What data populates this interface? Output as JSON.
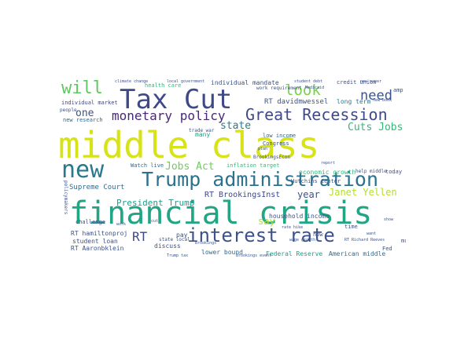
{
  "wordcloud": {
    "palette": {
      "purple": "#440154",
      "indigo": "#3b528b",
      "slate": "#414487",
      "blue": "#31688e",
      "teal": "#21918c",
      "sea": "#1f9e89",
      "green": "#35b779",
      "lime": "#6ece58",
      "yellowgreen": "#b5de2b",
      "yellow": "#fde725",
      "chartreuse": "#c8e020"
    },
    "words": [
      {
        "text": "middle class"
      },
      {
        "text": "financial crisis"
      },
      {
        "text": "Tax Cut"
      },
      {
        "text": "Trump administration"
      },
      {
        "text": "interest rate"
      },
      {
        "text": "Great Recession"
      },
      {
        "text": "new"
      },
      {
        "text": "will"
      },
      {
        "text": "monetary policy"
      },
      {
        "text": "look"
      },
      {
        "text": "need"
      },
      {
        "text": "Cuts Jobs"
      },
      {
        "text": "Jobs Act"
      },
      {
        "text": "state"
      },
      {
        "text": "one"
      },
      {
        "text": "RT BrookingsInst"
      },
      {
        "text": "President Trump"
      },
      {
        "text": "Janet Yellen"
      },
      {
        "text": "year"
      },
      {
        "text": "RT"
      },
      {
        "text": "Supreme Court"
      },
      {
        "text": "RT davidmwessel"
      },
      {
        "text": "long term"
      },
      {
        "text": "individual mandate"
      },
      {
        "text": "health care"
      },
      {
        "text": "new research"
      },
      {
        "text": "individual market"
      },
      {
        "text": "RT hamiltonproj"
      },
      {
        "text": "student loan"
      },
      {
        "text": "RT Aaronbklein"
      },
      {
        "text": "lower bound"
      },
      {
        "text": "household income"
      },
      {
        "text": "economic growth"
      },
      {
        "text": "American middle"
      },
      {
        "text": "Federal Reserve"
      },
      {
        "text": "credit union"
      },
      {
        "text": "inflation target"
      },
      {
        "text": "Hutchins Center"
      },
      {
        "text": "say"
      },
      {
        "text": "Watch live"
      },
      {
        "text": "Congress"
      },
      {
        "text": "low income"
      },
      {
        "text": "today"
      },
      {
        "text": "challenge"
      },
      {
        "text": "discuss"
      },
      {
        "text": "many"
      },
      {
        "text": "time"
      },
      {
        "text": "now"
      },
      {
        "text": "pay"
      },
      {
        "text": "amp"
      },
      {
        "text": "Fed"
      },
      {
        "text": "much"
      },
      {
        "text": "people"
      },
      {
        "text": "BrookingsEcon"
      },
      {
        "text": "help middle"
      },
      {
        "text": "state local"
      },
      {
        "text": "trade war"
      },
      {
        "text": "climate change"
      },
      {
        "text": "local government"
      },
      {
        "text": "work requirement"
      },
      {
        "text": "student debt"
      },
      {
        "text": "Medicaid"
      },
      {
        "text": "plan"
      },
      {
        "text": "Brookings"
      },
      {
        "text": "report"
      },
      {
        "text": "new paper"
      },
      {
        "text": "new book"
      },
      {
        "text": "show"
      },
      {
        "text": "policymakers"
      },
      {
        "text": "want"
      },
      {
        "text": "work"
      },
      {
        "text": "cut"
      },
      {
        "text": "RT Richard Reeves"
      },
      {
        "text": "wage growth"
      },
      {
        "text": "rate hike"
      },
      {
        "text": "Trump tax"
      },
      {
        "text": "Brookings event"
      }
    ]
  }
}
